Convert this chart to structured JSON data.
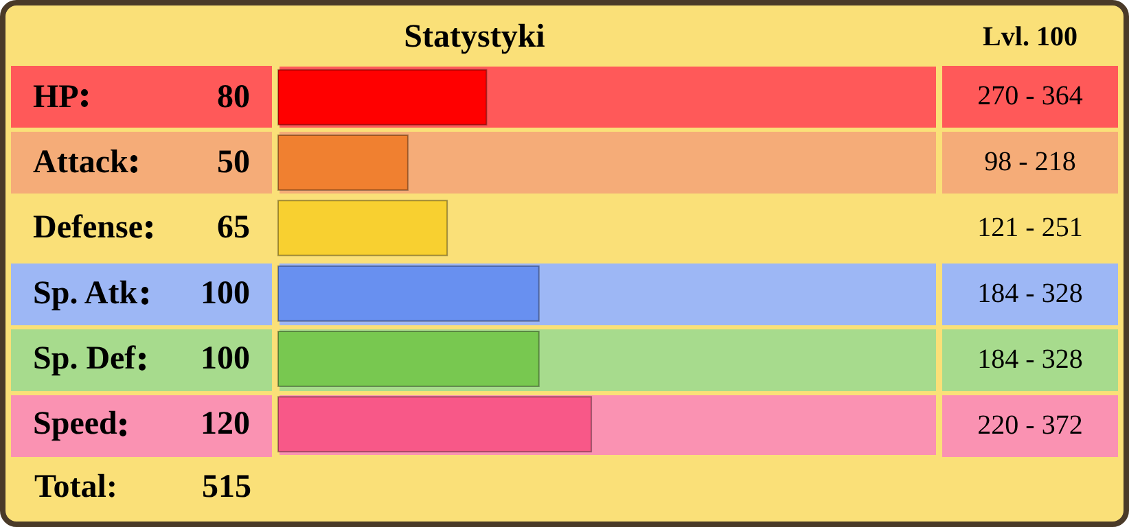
{
  "chart_data": {
    "type": "bar",
    "orientation": "horizontal",
    "title": "Statystyki",
    "categories": [
      "HP",
      "Attack",
      "Defense",
      "Sp. Atk",
      "Sp. Def",
      "Speed"
    ],
    "values": [
      80,
      50,
      65,
      100,
      100,
      120
    ],
    "colors": [
      "#ff0000",
      "#f08030",
      "#f8d030",
      "#6890f0",
      "#78c850",
      "#f85888"
    ],
    "xlim": [
      0,
      252
    ],
    "data_labels": true,
    "annotations": [
      "Lvl. 100",
      "270 - 364",
      "98 - 218",
      "121 - 251",
      "184 - 328",
      "184 - 328",
      "220 - 372",
      "Total:",
      "515"
    ]
  }
}
